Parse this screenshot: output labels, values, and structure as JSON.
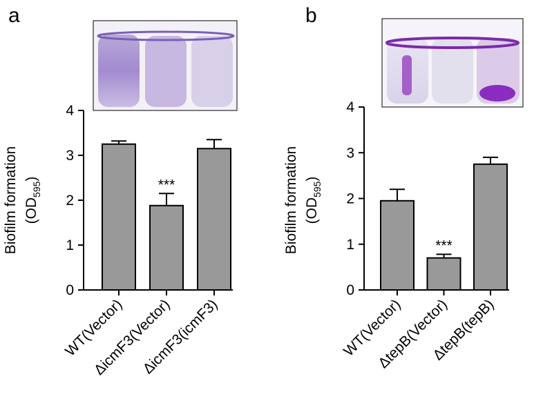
{
  "chart_data": [
    {
      "type": "bar",
      "panel": "a",
      "ylabel": [
        "Biofilm formation",
        "(OD",
        "595",
        ")"
      ],
      "categories": [
        "WT(Vector)",
        "ΔicmF3(Vector)",
        "ΔicmF3(icmF3)"
      ],
      "values": [
        3.25,
        1.88,
        3.15
      ],
      "errors": [
        0.07,
        0.27,
        0.2
      ],
      "annotations": [
        null,
        "***",
        null
      ],
      "color": "#999999",
      "ylim": [
        0,
        4
      ],
      "yticks": [
        0,
        1,
        2,
        3,
        4
      ]
    },
    {
      "type": "bar",
      "panel": "b",
      "ylabel": [
        "Biofilm formation",
        "(OD",
        "595",
        ")"
      ],
      "categories": [
        "WT(Vector)",
        "ΔtepB(Vector)",
        "ΔtepB(tepB)"
      ],
      "values": [
        1.95,
        0.7,
        2.75
      ],
      "errors": [
        0.25,
        0.08,
        0.15
      ],
      "annotations": [
        null,
        "***",
        null
      ],
      "color": "#999999",
      "ylim": [
        0,
        4
      ],
      "yticks": [
        0,
        1,
        2,
        3,
        4
      ]
    }
  ]
}
